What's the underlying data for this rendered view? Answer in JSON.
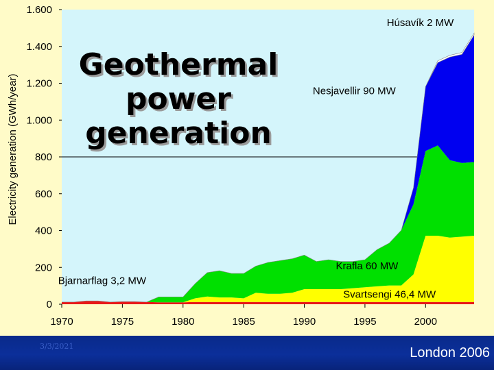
{
  "slide": {
    "title_lines": [
      "Geothermal",
      "power",
      "generation"
    ],
    "footer_date": "3/3/2021",
    "footer_event": "London 2006",
    "colors": {
      "background": "#fffbc8",
      "plot_background": "#d4f5fb",
      "footer": "#0b2f9a"
    }
  },
  "chart_data": {
    "type": "area",
    "stacked": true,
    "title": "",
    "xlabel": "",
    "ylabel": "Electricity generation (GWh/year)",
    "xlim": [
      1970,
      2004
    ],
    "ylim": [
      0,
      1600
    ],
    "y_ticks": [
      0,
      200,
      400,
      600,
      800,
      1000,
      1200,
      1400,
      1600
    ],
    "y_tick_labels": [
      "0",
      "200",
      "400",
      "600",
      "800",
      "1.000",
      "1.200",
      "1.400",
      "1.600"
    ],
    "x_ticks": [
      1970,
      1975,
      1980,
      1985,
      1990,
      1995,
      2000
    ],
    "x_tick_labels": [
      "1970",
      "1975",
      "1980",
      "1985",
      "1990",
      "1995",
      "2000"
    ],
    "grid": "horizontal at 800 only",
    "x": [
      1970,
      1971,
      1972,
      1973,
      1974,
      1975,
      1976,
      1977,
      1978,
      1979,
      1980,
      1981,
      1982,
      1983,
      1984,
      1985,
      1986,
      1987,
      1988,
      1989,
      1990,
      1991,
      1992,
      1993,
      1994,
      1995,
      1996,
      1997,
      1998,
      1999,
      2000,
      2001,
      2002,
      2003,
      2004
    ],
    "series": [
      {
        "name": "Bjarnarflag 3,2 MW",
        "color": "#e81818",
        "values": [
          12,
          12,
          18,
          18,
          12,
          14,
          14,
          12,
          10,
          10,
          10,
          12,
          12,
          12,
          12,
          12,
          12,
          12,
          12,
          12,
          12,
          12,
          12,
          12,
          12,
          12,
          12,
          12,
          12,
          12,
          12,
          12,
          12,
          12,
          12
        ]
      },
      {
        "name": "Svartsengi 46,4 MW",
        "color": "#ffff00",
        "values": [
          0,
          0,
          0,
          0,
          0,
          0,
          0,
          0,
          0,
          0,
          0,
          20,
          30,
          25,
          25,
          20,
          50,
          45,
          45,
          50,
          70,
          70,
          70,
          70,
          75,
          80,
          85,
          90,
          90,
          150,
          360,
          360,
          350,
          355,
          360
        ]
      },
      {
        "name": "Krafla 60 MW",
        "color": "#00e000",
        "values": [
          0,
          0,
          0,
          0,
          0,
          0,
          0,
          0,
          30,
          30,
          30,
          80,
          130,
          145,
          130,
          135,
          145,
          170,
          180,
          185,
          185,
          150,
          160,
          150,
          145,
          150,
          200,
          230,
          300,
          380,
          460,
          490,
          420,
          400,
          400
        ]
      },
      {
        "name": "Nesjavellir 90 MW",
        "color": "#0000f0",
        "values": [
          0,
          0,
          0,
          0,
          0,
          0,
          0,
          0,
          0,
          0,
          0,
          0,
          0,
          0,
          0,
          0,
          0,
          0,
          0,
          0,
          0,
          0,
          0,
          0,
          0,
          0,
          0,
          0,
          0,
          90,
          350,
          450,
          560,
          590,
          690
        ]
      },
      {
        "name": "Húsavík 2 MW",
        "color": "#ffffff",
        "values": [
          0,
          0,
          0,
          0,
          0,
          0,
          0,
          0,
          0,
          0,
          0,
          0,
          0,
          0,
          0,
          0,
          0,
          0,
          0,
          0,
          0,
          0,
          0,
          0,
          0,
          0,
          0,
          0,
          0,
          0,
          0,
          10,
          10,
          10,
          10
        ]
      }
    ],
    "series_label_anchors": [
      {
        "name": "Bjarnarflag 3,2 MW",
        "x": 1969.7,
        "y": 110
      },
      {
        "name": "Svartsengi 46,4 MW",
        "x": 1993.2,
        "y": 35
      },
      {
        "name": "Krafla 60 MW",
        "x": 1992.6,
        "y": 190
      },
      {
        "name": "Nesjavellir 90 MW",
        "x": 1990.7,
        "y": 1140
      },
      {
        "name": "Húsavík 2 MW",
        "x": 1996.8,
        "y": 1510
      }
    ]
  }
}
